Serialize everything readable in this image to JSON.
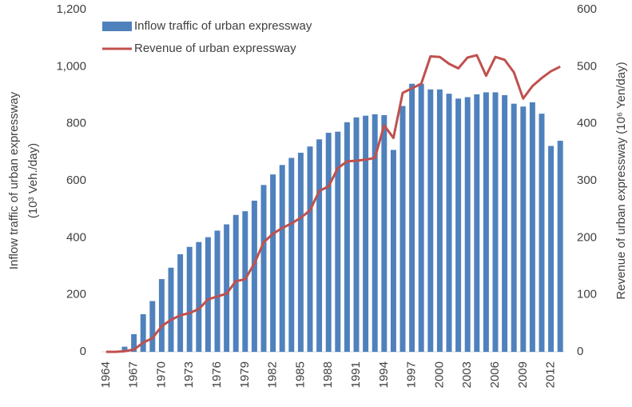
{
  "chart_data": {
    "type": "bar_line",
    "categories": [
      "1964",
      null,
      null,
      "1967",
      null,
      null,
      "1970",
      null,
      null,
      "1973",
      null,
      null,
      "1976",
      null,
      null,
      "1979",
      null,
      null,
      "1982",
      null,
      null,
      "1985",
      null,
      null,
      "1988",
      null,
      null,
      "1991",
      null,
      null,
      "1994",
      null,
      null,
      "1997",
      null,
      null,
      "2000",
      null,
      null,
      "2003",
      null,
      null,
      "2006",
      null,
      null,
      "2009",
      null,
      null,
      "2012",
      null
    ],
    "series": [
      {
        "name": "Inflow traffic of urban expressway",
        "color": "#4f81bd",
        "type": "bar",
        "values": [
          0,
          0,
          18,
          62,
          132,
          178,
          255,
          295,
          342,
          368,
          385,
          402,
          425,
          447,
          480,
          493,
          530,
          585,
          622,
          655,
          680,
          698,
          720,
          745,
          768,
          772,
          805,
          822,
          828,
          833,
          830,
          708,
          862,
          940,
          940,
          920,
          920,
          905,
          888,
          893,
          903,
          910,
          910,
          900,
          870,
          860,
          875,
          835,
          722,
          740
        ]
      },
      {
        "name": "Revenue of urban expressway",
        "color": "#c0504d",
        "type": "line",
        "axis": "y2",
        "values": [
          0,
          0,
          1,
          4,
          16,
          24,
          45,
          56,
          64,
          68,
          75,
          92,
          97,
          102,
          124,
          127,
          155,
          192,
          207,
          217,
          225,
          235,
          248,
          282,
          290,
          322,
          334,
          335,
          337,
          340,
          397,
          375,
          454,
          462,
          470,
          518,
          517,
          505,
          497,
          516,
          520,
          484,
          517,
          512,
          490,
          444,
          466,
          480,
          492,
          500
        ]
      }
    ],
    "y_label": [
      "Inflow traffic of urban expressway",
      "(10³ Veh./day)"
    ],
    "y2_label": "Revenue of urban expressway (10⁶ Yen/day)",
    "ylim": [
      0,
      1200
    ],
    "yticks": [
      0,
      200,
      400,
      600,
      800,
      {
        "value": 1000,
        "label": "1,000"
      },
      {
        "value": 1200,
        "label": "1,200"
      }
    ],
    "y2lim": [
      0,
      600
    ],
    "y2ticks": [
      0,
      100,
      200,
      300,
      400,
      500,
      600
    ],
    "legend": "top-left"
  }
}
